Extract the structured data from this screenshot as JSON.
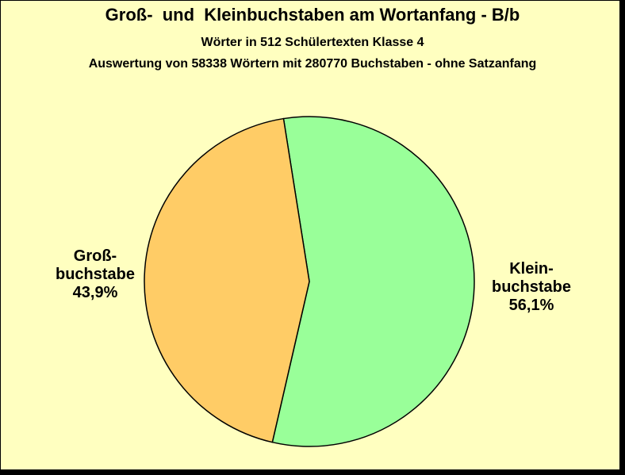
{
  "chart_data": {
    "type": "pie",
    "title": "Groß-  und  Kleinbuchstaben am Wortanfang - B/b",
    "subtitle": "Wörter in 512 Schülertexten Klasse 4",
    "subtitle2": "Auswertung von 58338 Wörtern mit 280770 Buchstaben - ohne Satzanfang",
    "slices": [
      {
        "label_line1": "Klein-",
        "label_line2": "buchstabe",
        "value": 56.1,
        "value_label": "56,1%",
        "color": "#99ff99"
      },
      {
        "label_line1": "Groß-",
        "label_line2": "buchstabe",
        "value": 43.9,
        "value_label": "43,9%",
        "color": "#ffcc66"
      }
    ],
    "legend": "none"
  },
  "colors": {
    "background": "#ffffc0",
    "outline": "#000000"
  }
}
